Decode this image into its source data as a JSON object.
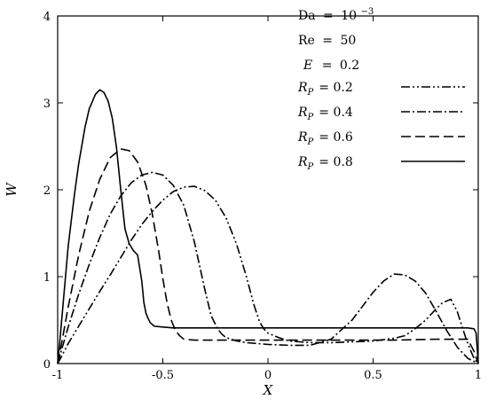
{
  "colors": {
    "line": "#000000",
    "background": "#ffffff"
  },
  "chart_data": {
    "type": "line",
    "xlabel": "X",
    "ylabel": "W",
    "xlim": [
      -1,
      1
    ],
    "ylim": [
      0,
      4
    ],
    "x_ticks": [
      "-1",
      "-0.5",
      "0",
      "0.5",
      "1"
    ],
    "y_ticks": [
      "0",
      "1",
      "2",
      "3",
      "4"
    ],
    "grid": false,
    "legend_position": "top-right",
    "parameters": [
      {
        "name": "Da",
        "eq": "=",
        "value": "10",
        "exponent": "−3"
      },
      {
        "name": "Re",
        "eq": "=",
        "value": "50"
      },
      {
        "name": "E",
        "eq": "=",
        "value": "0.2"
      }
    ],
    "series": [
      {
        "name": "R_P = 0.2",
        "label_main": "R",
        "label_sub": "P",
        "label_value": "= 0.2",
        "dash": "dash-dot-dot",
        "x": [
          -1,
          -0.98,
          -0.95,
          -0.9,
          -0.85,
          -0.8,
          -0.75,
          -0.7,
          -0.65,
          -0.6,
          -0.55,
          -0.5,
          -0.45,
          -0.4,
          -0.35,
          -0.3,
          -0.25,
          -0.2,
          -0.15,
          -0.1,
          -0.07,
          -0.04,
          -0.02,
          0,
          0.05,
          0.1,
          0.15,
          0.2,
          0.3,
          0.4,
          0.5,
          0.6,
          0.65,
          0.7,
          0.75,
          0.8,
          0.83,
          0.85,
          0.87,
          0.9,
          0.92,
          0.94,
          0.96,
          0.98,
          1
        ],
        "y": [
          0,
          0.09,
          0.23,
          0.43,
          0.63,
          0.83,
          1.02,
          1.22,
          1.42,
          1.6,
          1.75,
          1.88,
          1.98,
          2.03,
          2.04,
          1.99,
          1.88,
          1.68,
          1.38,
          0.98,
          0.7,
          0.48,
          0.4,
          0.35,
          0.3,
          0.26,
          0.25,
          0.24,
          0.24,
          0.25,
          0.26,
          0.29,
          0.32,
          0.4,
          0.5,
          0.63,
          0.7,
          0.72,
          0.74,
          0.6,
          0.45,
          0.3,
          0.17,
          0.06,
          0
        ]
      },
      {
        "name": "R_P = 0.4",
        "label_main": "R",
        "label_sub": "P",
        "label_value": "= 0.4",
        "dash": "dash-dot",
        "x": [
          -1,
          -0.98,
          -0.95,
          -0.9,
          -0.85,
          -0.8,
          -0.75,
          -0.7,
          -0.65,
          -0.6,
          -0.55,
          -0.5,
          -0.45,
          -0.4,
          -0.35,
          -0.3,
          -0.27,
          -0.24,
          -0.22,
          -0.2,
          -0.15,
          -0.1,
          0,
          0.1,
          0.2,
          0.3,
          0.4,
          0.45,
          0.5,
          0.55,
          0.6,
          0.65,
          0.7,
          0.75,
          0.8,
          0.85,
          0.9,
          0.95,
          1
        ],
        "y": [
          0,
          0.17,
          0.42,
          0.8,
          1.14,
          1.45,
          1.72,
          1.93,
          2.08,
          2.17,
          2.2,
          2.17,
          2.05,
          1.82,
          1.4,
          0.85,
          0.55,
          0.4,
          0.34,
          0.3,
          0.26,
          0.24,
          0.22,
          0.21,
          0.21,
          0.28,
          0.5,
          0.66,
          0.82,
          0.95,
          1.03,
          1.02,
          0.95,
          0.81,
          0.6,
          0.38,
          0.19,
          0.06,
          0
        ]
      },
      {
        "name": "R_P = 0.6",
        "label_main": "R",
        "label_sub": "P",
        "label_value": "= 0.6",
        "dash": "dashed",
        "x": [
          -1,
          -0.98,
          -0.95,
          -0.9,
          -0.85,
          -0.8,
          -0.75,
          -0.7,
          -0.66,
          -0.62,
          -0.58,
          -0.55,
          -0.52,
          -0.5,
          -0.48,
          -0.46,
          -0.44,
          -0.42,
          -0.4,
          -0.35,
          -0.3,
          -0.2,
          -0.1,
          0,
          0.2,
          0.4,
          0.6,
          0.8,
          0.9,
          0.95,
          0.98,
          1
        ],
        "y": [
          0,
          0.25,
          0.65,
          1.25,
          1.75,
          2.12,
          2.37,
          2.47,
          2.45,
          2.32,
          2.05,
          1.72,
          1.3,
          0.98,
          0.7,
          0.5,
          0.38,
          0.32,
          0.28,
          0.27,
          0.27,
          0.27,
          0.27,
          0.27,
          0.27,
          0.27,
          0.27,
          0.28,
          0.28,
          0.28,
          0.14,
          0
        ]
      },
      {
        "name": "R_P = 0.8",
        "label_main": "R",
        "label_sub": "P",
        "label_value": "= 0.8",
        "dash": "solid",
        "x": [
          -1,
          -0.99,
          -0.97,
          -0.95,
          -0.92,
          -0.9,
          -0.87,
          -0.85,
          -0.82,
          -0.8,
          -0.78,
          -0.76,
          -0.74,
          -0.72,
          -0.7,
          -0.68,
          -0.66,
          -0.64,
          -0.62,
          -0.6,
          -0.59,
          -0.58,
          -0.57,
          -0.56,
          -0.54,
          -0.5,
          -0.45,
          -0.4,
          -0.2,
          0,
          0.2,
          0.4,
          0.6,
          0.8,
          0.9,
          0.95,
          0.98,
          0.99,
          1
        ],
        "y": [
          0,
          0.25,
          0.8,
          1.35,
          1.95,
          2.3,
          2.72,
          2.93,
          3.1,
          3.15,
          3.12,
          3.02,
          2.82,
          2.48,
          2.0,
          1.55,
          1.38,
          1.3,
          1.25,
          0.95,
          0.7,
          0.58,
          0.52,
          0.47,
          0.43,
          0.42,
          0.41,
          0.41,
          0.41,
          0.41,
          0.41,
          0.41,
          0.41,
          0.41,
          0.41,
          0.41,
          0.4,
          0.35,
          0
        ]
      }
    ]
  }
}
